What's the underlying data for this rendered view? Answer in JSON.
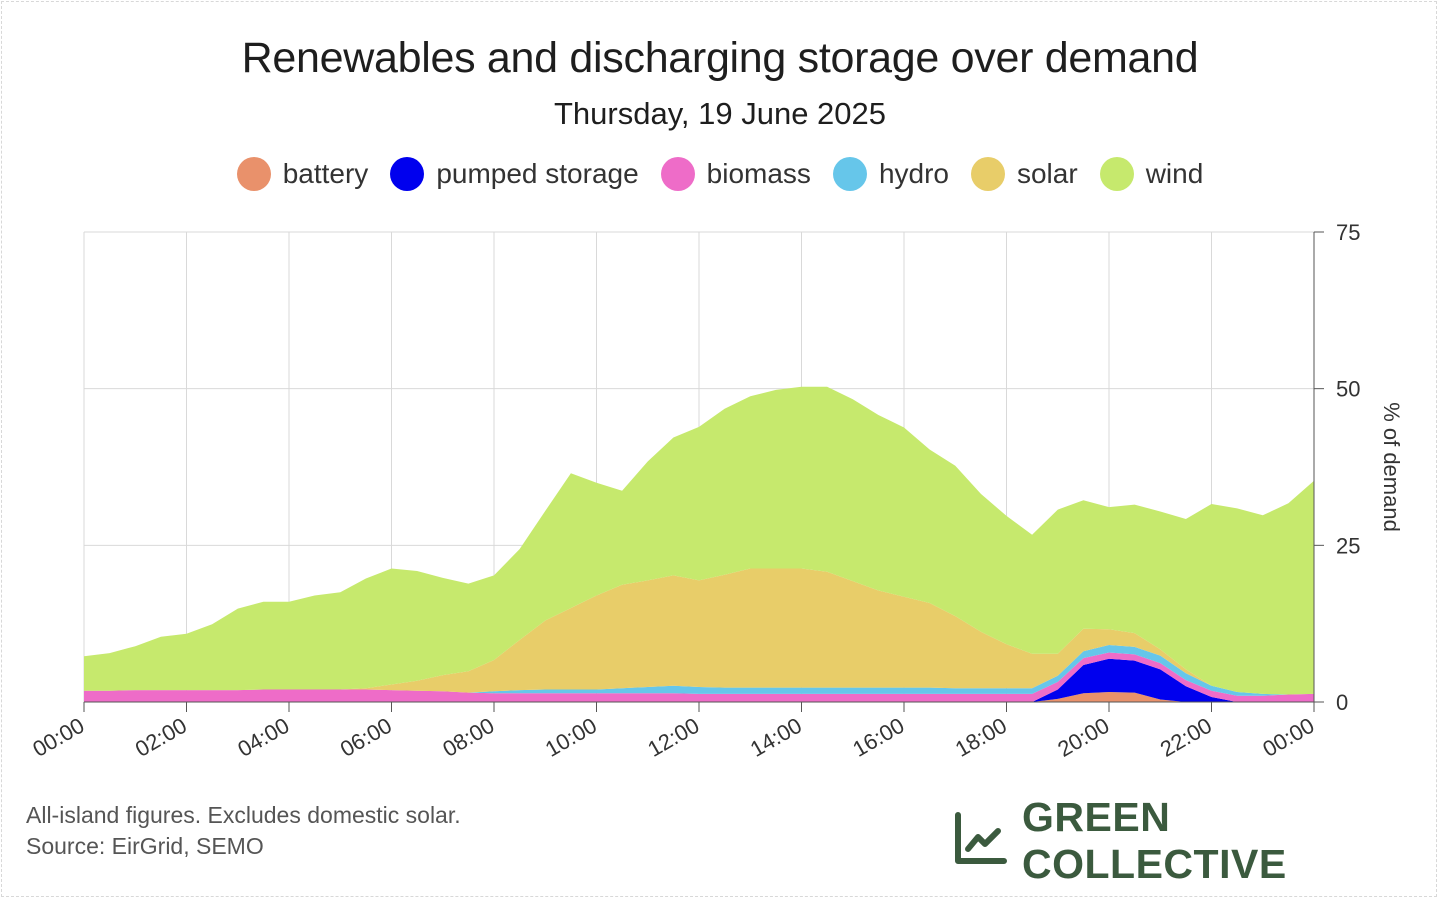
{
  "title": "Renewables and discharging storage over demand",
  "subtitle": "Thursday, 19 June 2025",
  "footnote_line1": "All-island figures. Excludes domestic solar.",
  "footnote_line2": "Source: EirGrid, SEMO",
  "brand": {
    "name": "GREEN COLLECTIVE",
    "icon": "line-chart-icon",
    "color": "#3b5a3e"
  },
  "chart_data": {
    "type": "area",
    "stacked": true,
    "title": "Renewables and discharging storage over demand",
    "subtitle": "Thursday, 19 June 2025",
    "ylabel": "% of demand",
    "xlabel": "",
    "ylim": [
      0,
      75
    ],
    "y_axis_side": "right",
    "y_ticks": [
      "0",
      "25",
      "50",
      "75"
    ],
    "x_ticks": [
      "00:00",
      "02:00",
      "04:00",
      "06:00",
      "08:00",
      "10:00",
      "12:00",
      "14:00",
      "16:00",
      "18:00",
      "20:00",
      "22:00",
      "00:00"
    ],
    "grid": true,
    "legend_position": "top",
    "x": [
      "00:00",
      "00:30",
      "01:00",
      "01:30",
      "02:00",
      "02:30",
      "03:00",
      "03:30",
      "04:00",
      "04:30",
      "05:00",
      "05:30",
      "06:00",
      "06:30",
      "07:00",
      "07:30",
      "08:00",
      "08:30",
      "09:00",
      "09:30",
      "10:00",
      "10:30",
      "11:00",
      "11:30",
      "12:00",
      "12:30",
      "13:00",
      "13:30",
      "14:00",
      "14:30",
      "15:00",
      "15:30",
      "16:00",
      "16:30",
      "17:00",
      "17:30",
      "18:00",
      "18:30",
      "19:00",
      "19:30",
      "20:00",
      "20:30",
      "21:00",
      "21:30",
      "22:00",
      "22:30",
      "23:00",
      "23:30",
      "00:00"
    ],
    "series": [
      {
        "name": "battery",
        "color": "#e9916b",
        "values": [
          0,
          0,
          0,
          0,
          0,
          0,
          0,
          0,
          0,
          0,
          0,
          0,
          0,
          0,
          0,
          0,
          0,
          0,
          0,
          0,
          0,
          0,
          0,
          0,
          0,
          0,
          0,
          0,
          0,
          0,
          0,
          0,
          0,
          0,
          0,
          0,
          0,
          0,
          0.5,
          1.4,
          1.6,
          1.5,
          0.4,
          0,
          0,
          0,
          0,
          0,
          0
        ]
      },
      {
        "name": "pumped storage",
        "color": "#0000ee",
        "values": [
          0,
          0,
          0,
          0,
          0,
          0,
          0,
          0,
          0,
          0,
          0,
          0,
          0,
          0,
          0,
          0,
          0,
          0,
          0,
          0,
          0,
          0,
          0,
          0,
          0,
          0,
          0,
          0,
          0,
          0,
          0,
          0,
          0,
          0,
          0,
          0,
          0,
          0,
          1.5,
          4.5,
          5.3,
          5.1,
          4.8,
          2.5,
          0.8,
          0,
          0,
          0,
          0
        ]
      },
      {
        "name": "biomass",
        "color": "#ee6cc8",
        "values": [
          1.8,
          1.8,
          1.9,
          1.9,
          1.9,
          1.9,
          1.9,
          2.0,
          2.0,
          2.0,
          2.0,
          2.0,
          1.9,
          1.8,
          1.7,
          1.5,
          1.4,
          1.4,
          1.4,
          1.4,
          1.4,
          1.4,
          1.4,
          1.4,
          1.3,
          1.3,
          1.3,
          1.3,
          1.3,
          1.3,
          1.3,
          1.3,
          1.3,
          1.3,
          1.3,
          1.3,
          1.3,
          1.3,
          1.2,
          1.1,
          1.0,
          1.0,
          1.0,
          1.0,
          1.0,
          1.0,
          1.0,
          1.2,
          1.3
        ]
      },
      {
        "name": "hydro",
        "color": "#66c6ea",
        "values": [
          0,
          0,
          0,
          0,
          0,
          0,
          0,
          0,
          0,
          0,
          0,
          0,
          0,
          0,
          0,
          0,
          0.3,
          0.5,
          0.6,
          0.6,
          0.6,
          0.8,
          1.0,
          1.2,
          1.1,
          1.0,
          1.0,
          1.0,
          1.0,
          1.0,
          1.0,
          1.0,
          1.0,
          1.0,
          0.9,
          0.9,
          0.9,
          0.9,
          1.0,
          1.1,
          1.2,
          1.2,
          1.2,
          1.1,
          0.8,
          0.6,
          0.3,
          0,
          0
        ]
      },
      {
        "name": "solar",
        "color": "#e8cd69",
        "values": [
          0,
          0,
          0,
          0,
          0,
          0,
          0,
          0,
          0,
          0,
          0,
          0.2,
          0.9,
          1.6,
          2.6,
          3.4,
          5.0,
          8.0,
          11.0,
          13.0,
          15.0,
          16.5,
          17.0,
          17.6,
          17.0,
          18.0,
          19.0,
          19.0,
          19.0,
          18.5,
          17.0,
          15.5,
          14.5,
          13.5,
          11.5,
          9.0,
          7.0,
          5.5,
          3.5,
          3.6,
          2.5,
          2.2,
          1.0,
          0.6,
          0,
          0,
          0,
          0,
          0
        ]
      },
      {
        "name": "wind",
        "color": "#c6e96d",
        "values": [
          5.5,
          6.0,
          7.0,
          8.5,
          9.0,
          10.5,
          13.0,
          14.0,
          14.0,
          15.0,
          15.5,
          17.5,
          18.5,
          17.5,
          15.5,
          14.0,
          13.5,
          14.5,
          17.5,
          21.5,
          18.0,
          15.0,
          19.0,
          22.0,
          24.5,
          26.5,
          27.5,
          28.5,
          29.0,
          29.5,
          29.0,
          28.0,
          27.0,
          24.5,
          24.0,
          22.0,
          20.5,
          19.0,
          23.0,
          20.5,
          19.5,
          20.5,
          22.0,
          24.0,
          29.0,
          29.3,
          28.5,
          30.5,
          34.0
        ]
      }
    ]
  }
}
